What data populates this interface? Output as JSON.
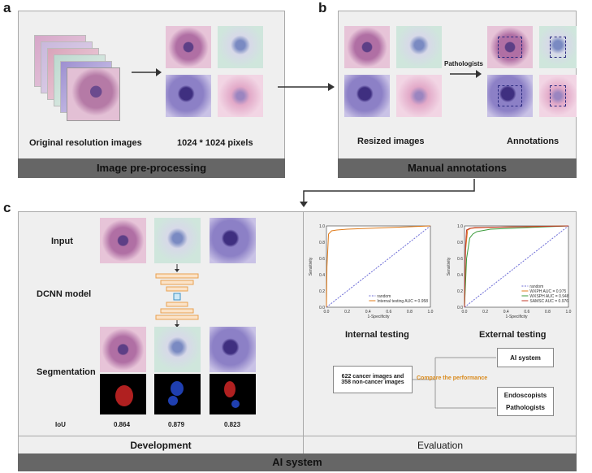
{
  "panels": {
    "a": {
      "letter": "a",
      "label_original": "Original resolution images",
      "label_resized": "1024 * 1024 pixels",
      "bar": "Image pre-processing"
    },
    "b": {
      "letter": "b",
      "label_resized": "Resized images",
      "label_pathologists": "Pathologists",
      "label_annotations": "Annotations",
      "bar": "Manual annotations"
    },
    "c": {
      "letter": "c",
      "input": "Input",
      "model": "DCNN model",
      "segmentation": "Segmentation",
      "iou_label": "IoU",
      "iou_values": [
        "0.864",
        "0.879",
        "0.823"
      ],
      "internal_title": "Internal testing",
      "external_title": "External testing",
      "flow": {
        "source_line1": "622 cancer images and",
        "source_line2": "358  non-cancer images",
        "compare": "Compare the performance",
        "ai": "AI system",
        "endo": "Endoscopists",
        "path": "Pathologists"
      },
      "dev": "Development",
      "eval": "Evaluation",
      "bottom": "AI system"
    }
  },
  "chart_data": [
    {
      "type": "line",
      "xlabel": "1-Specificity",
      "ylabel": "Sensitivity",
      "ticks": [
        "0.0",
        "0.2",
        "0.4",
        "0.6",
        "0.8",
        "1.0"
      ],
      "series": [
        {
          "name": "random",
          "color": "#6b6bd6",
          "style": "dashed",
          "x": [
            0,
            1
          ],
          "y": [
            0,
            1
          ]
        },
        {
          "name": "Internal  testing AUC = 0.958",
          "color": "#e07b1a",
          "x": [
            0,
            0.005,
            0.02,
            0.05,
            0.1,
            0.2,
            0.4,
            0.7,
            1.0
          ],
          "y": [
            0,
            0.5,
            0.9,
            0.94,
            0.95,
            0.96,
            0.97,
            0.985,
            1.0
          ]
        }
      ]
    },
    {
      "type": "line",
      "xlabel": "1-Specificity",
      "ylabel": "Sensitivity",
      "ticks": [
        "0.0",
        "0.2",
        "0.4",
        "0.6",
        "0.8",
        "1.0"
      ],
      "series": [
        {
          "name": "random",
          "color": "#6b6bd6",
          "style": "dashed",
          "x": [
            0,
            1
          ],
          "y": [
            0,
            1
          ]
        },
        {
          "name": "WXPH AUC = 0.975",
          "color": "#e07b1a",
          "x": [
            0,
            0.01,
            0.03,
            0.06,
            0.1,
            0.2,
            0.5,
            1.0
          ],
          "y": [
            0,
            0.7,
            0.95,
            0.97,
            0.975,
            0.98,
            0.99,
            1.0
          ]
        },
        {
          "name": "WXSPH AUC = 0.948",
          "color": "#3a9a3a",
          "x": [
            0,
            0.02,
            0.05,
            0.08,
            0.12,
            0.25,
            0.6,
            1.0
          ],
          "y": [
            0,
            0.6,
            0.85,
            0.9,
            0.93,
            0.96,
            0.98,
            1.0
          ]
        },
        {
          "name": "SAMSC AUC = 0.976",
          "color": "#c0392b",
          "x": [
            0,
            0.01,
            0.02,
            0.05,
            0.1,
            0.3,
            0.6,
            1.0
          ],
          "y": [
            0,
            0.75,
            0.95,
            0.97,
            0.98,
            0.985,
            0.99,
            1.0
          ]
        }
      ]
    }
  ]
}
